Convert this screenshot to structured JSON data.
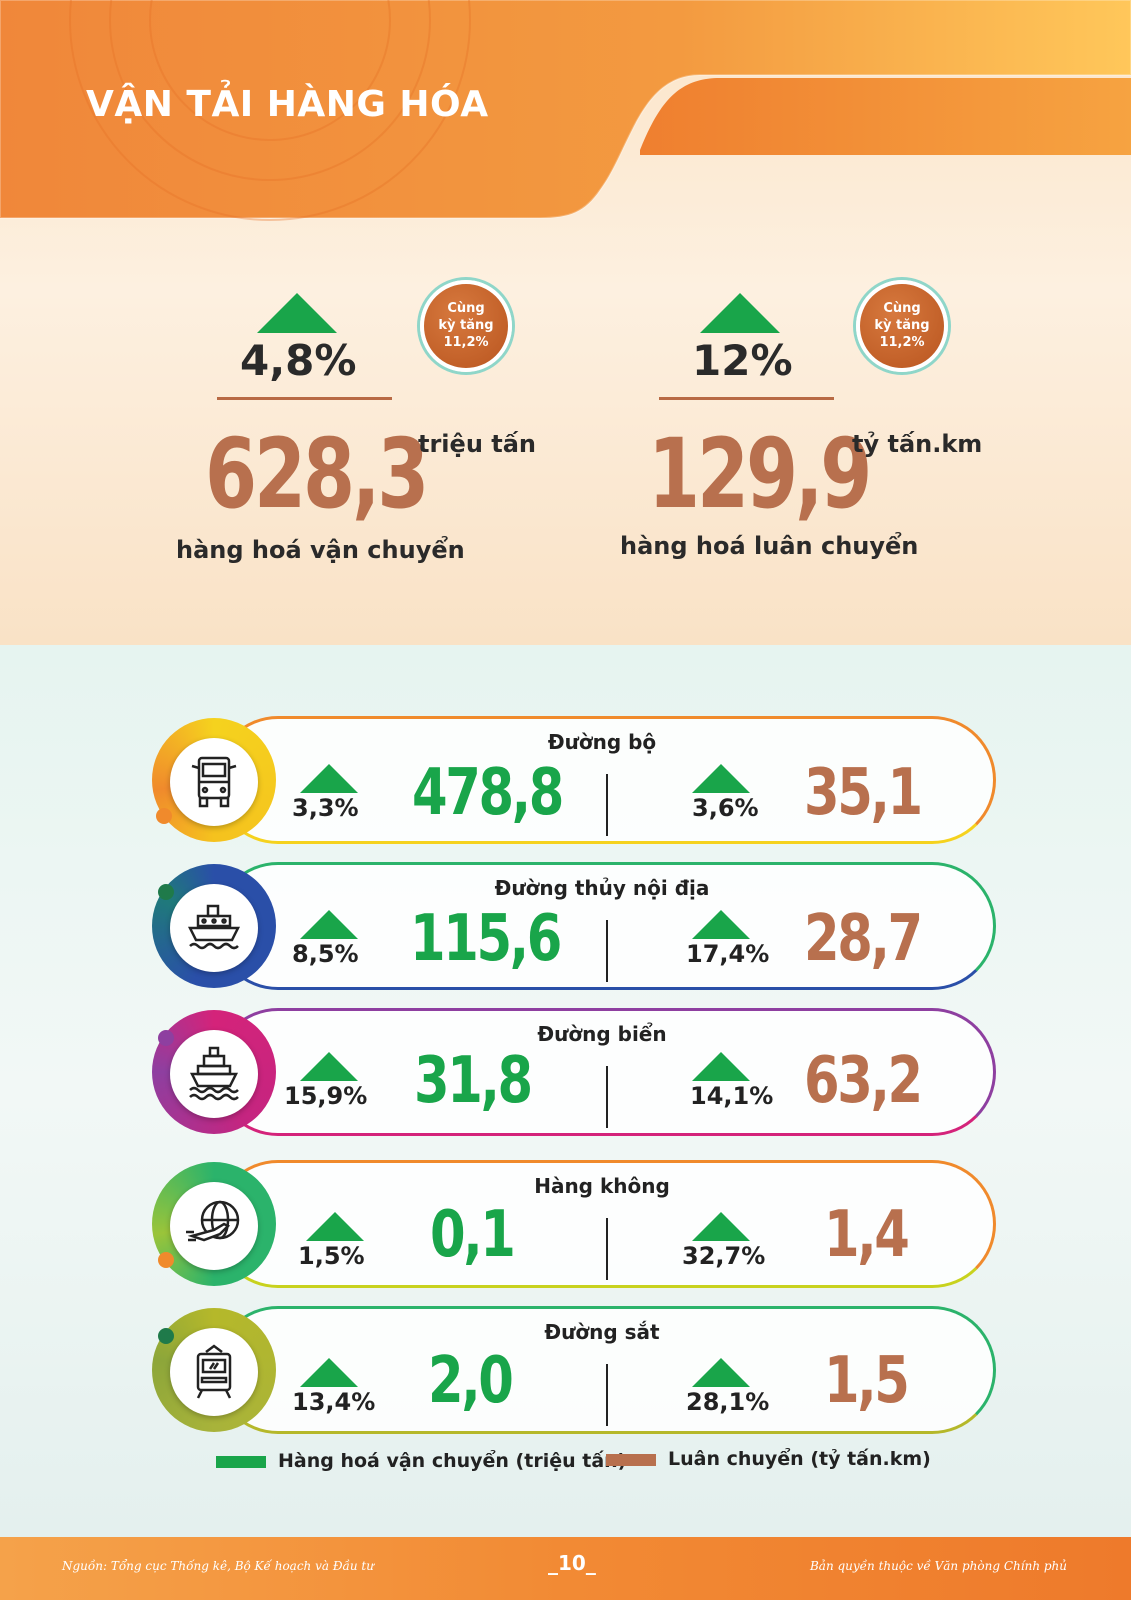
{
  "title": "VẬN TẢI HÀNG HÓA",
  "summary": [
    {
      "growth": "4,8%",
      "badge": [
        "Cùng",
        "kỳ tăng",
        "11,2%"
      ],
      "value": "628,3",
      "unit": "triệu tấn",
      "label": "hàng hoá vận chuyển"
    },
    {
      "growth": "12%",
      "badge": [
        "Cùng",
        "kỳ tăng",
        "11,2%"
      ],
      "value": "129,9",
      "unit": "tỷ tấn.km",
      "label": "hàng hoá luân chuyển"
    }
  ],
  "modes": [
    {
      "name": "Đường bộ",
      "icon": "truck-icon",
      "volume_growth": "3,3%",
      "volume": "478,8",
      "turnover_growth": "3,6%",
      "turnover": "35,1",
      "color": "#f08a2c"
    },
    {
      "name": "Đường thủy nội địa",
      "icon": "ferry-icon",
      "volume_growth": "8,5%",
      "volume": "115,6",
      "turnover_growth": "17,4%",
      "turnover": "28,7",
      "color": "#2bb36b"
    },
    {
      "name": "Đường biển",
      "icon": "ship-icon",
      "volume_growth": "15,9%",
      "volume": "31,8",
      "turnover_growth": "14,1%",
      "turnover": "63,2",
      "color": "#8e3fa0"
    },
    {
      "name": "Hàng không",
      "icon": "airplane-globe-icon",
      "volume_growth": "1,5%",
      "volume": "0,1",
      "turnover_growth": "32,7%",
      "turnover": "1,4",
      "color": "#f08a2c"
    },
    {
      "name": "Đường sắt",
      "icon": "train-icon",
      "volume_growth": "13,4%",
      "volume": "2,0",
      "turnover_growth": "28,1%",
      "turnover": "1,5",
      "color": "#2bb36b"
    }
  ],
  "legend": {
    "volume": "Hàng hoá vận chuyển (triệu tấn)",
    "turnover": "Luân chuyển (tỷ tấn.km)",
    "volume_color": "#19a54a",
    "turnover_color": "#b8704e"
  },
  "footer": {
    "source": "Nguồn: Tổng cục Thống kê, Bộ Kế hoạch và Đầu tư",
    "page": "_10_",
    "copyright": "Bản quyền thuộc về Văn phòng Chính phủ"
  }
}
